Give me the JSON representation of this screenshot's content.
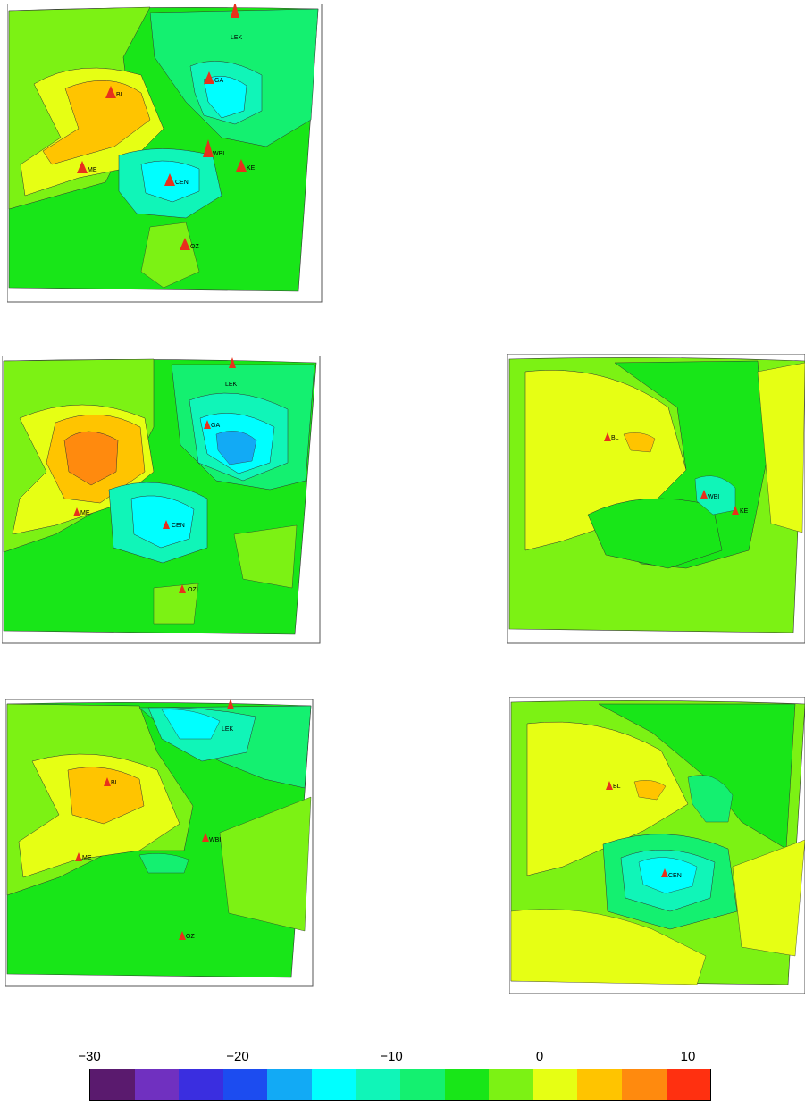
{
  "panels": [
    {
      "name": "panel-top-left",
      "sites": [
        {
          "label": "LEK"
        },
        {
          "label": "GA"
        },
        {
          "label": "BL"
        },
        {
          "label": "WBI"
        },
        {
          "label": "ME"
        },
        {
          "label": "KE"
        },
        {
          "label": "CEN"
        },
        {
          "label": "OZ"
        }
      ]
    },
    {
      "name": "panel-middle-left",
      "sites": [
        {
          "label": "LEK"
        },
        {
          "label": "GA"
        },
        {
          "label": "ME"
        },
        {
          "label": "CEN"
        },
        {
          "label": "OZ"
        }
      ]
    },
    {
      "name": "panel-middle-right",
      "sites": [
        {
          "label": "BL"
        },
        {
          "label": "WBI"
        },
        {
          "label": "KE"
        }
      ]
    },
    {
      "name": "panel-bottom-left",
      "sites": [
        {
          "label": "LEK"
        },
        {
          "label": "BL"
        },
        {
          "label": "WBI"
        },
        {
          "label": "ME"
        },
        {
          "label": "OZ"
        }
      ]
    },
    {
      "name": "panel-bottom-right",
      "sites": [
        {
          "label": "BL"
        },
        {
          "label": "CEN"
        }
      ]
    }
  ],
  "site_marker_color": "#e8301c",
  "colorbar": {
    "ticks": [
      "−30",
      "−20",
      "−10",
      "0",
      "10"
    ],
    "tick_values": [
      -30,
      -20,
      -10,
      0,
      10
    ],
    "range": [
      -30,
      12
    ],
    "colors": [
      "#5a1a6e",
      "#7030c0",
      "#3a2ee0",
      "#1c4cf0",
      "#12aaf5",
      "#00ffff",
      "#10f5b8",
      "#14f070",
      "#18e618",
      "#7cf214",
      "#e6ff14",
      "#ffc400",
      "#ff8a0e",
      "#ff3010"
    ]
  }
}
